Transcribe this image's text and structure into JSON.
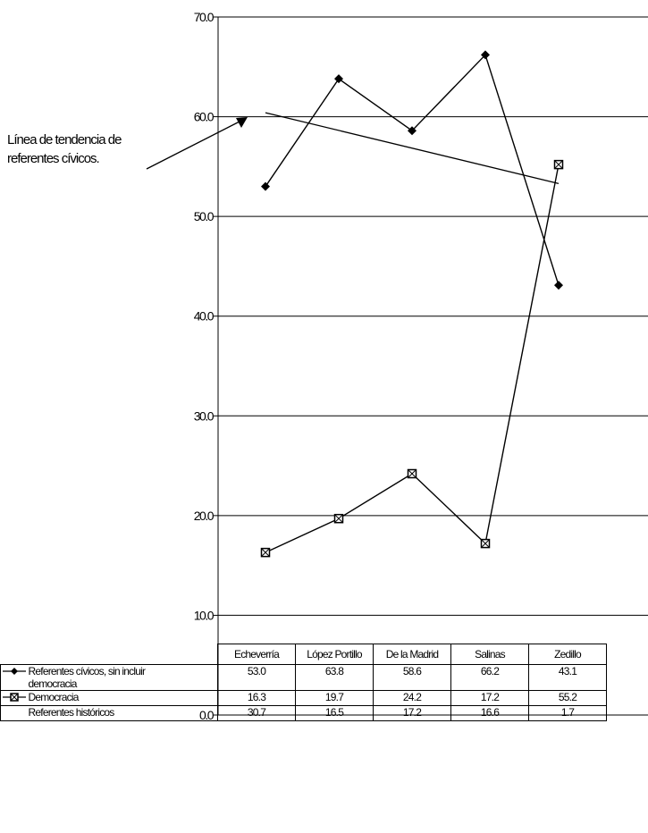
{
  "annotation": [
    "Línea de tendencia de",
    "referentes cívicos."
  ],
  "chart_data": {
    "type": "line",
    "ylim": [
      0,
      70
    ],
    "yticks": [
      "0.0",
      "10.0",
      "20.0",
      "30.0",
      "40.0",
      "50.0",
      "60.0",
      "70.0"
    ],
    "categories": [
      "Echeverría",
      "López Portillo",
      "De la Madrid",
      "Salinas",
      "Zedillo"
    ],
    "series": [
      {
        "name": "Referentes cívicos, sin incluir democracia",
        "name_lines": [
          "Referentes cívicos, sin incluir",
          "democracia"
        ],
        "marker": "diamond",
        "values": [
          53.0,
          63.8,
          58.6,
          66.2,
          43.1
        ],
        "labels": [
          "53.0",
          "63.8",
          "58.6",
          "66.2",
          "43.1"
        ]
      },
      {
        "name": "Democracia",
        "marker": "square",
        "values": [
          16.3,
          19.7,
          24.2,
          17.2,
          55.2
        ],
        "labels": [
          "16.3",
          "19.7",
          "24.2",
          "17.2",
          "55.2"
        ]
      },
      {
        "name": "Referentes históricos",
        "marker": "none",
        "plotted": false,
        "values": [
          30.7,
          16.5,
          17.2,
          16.6,
          1.7
        ],
        "labels": [
          "30.7",
          "16.5",
          "17.2",
          "16.6",
          "1.7"
        ]
      }
    ],
    "trendline": {
      "series": "Referentes cívicos, sin incluir democracia",
      "start": 60.4,
      "end": 53.3
    },
    "grid": true,
    "legend": "data-table"
  }
}
